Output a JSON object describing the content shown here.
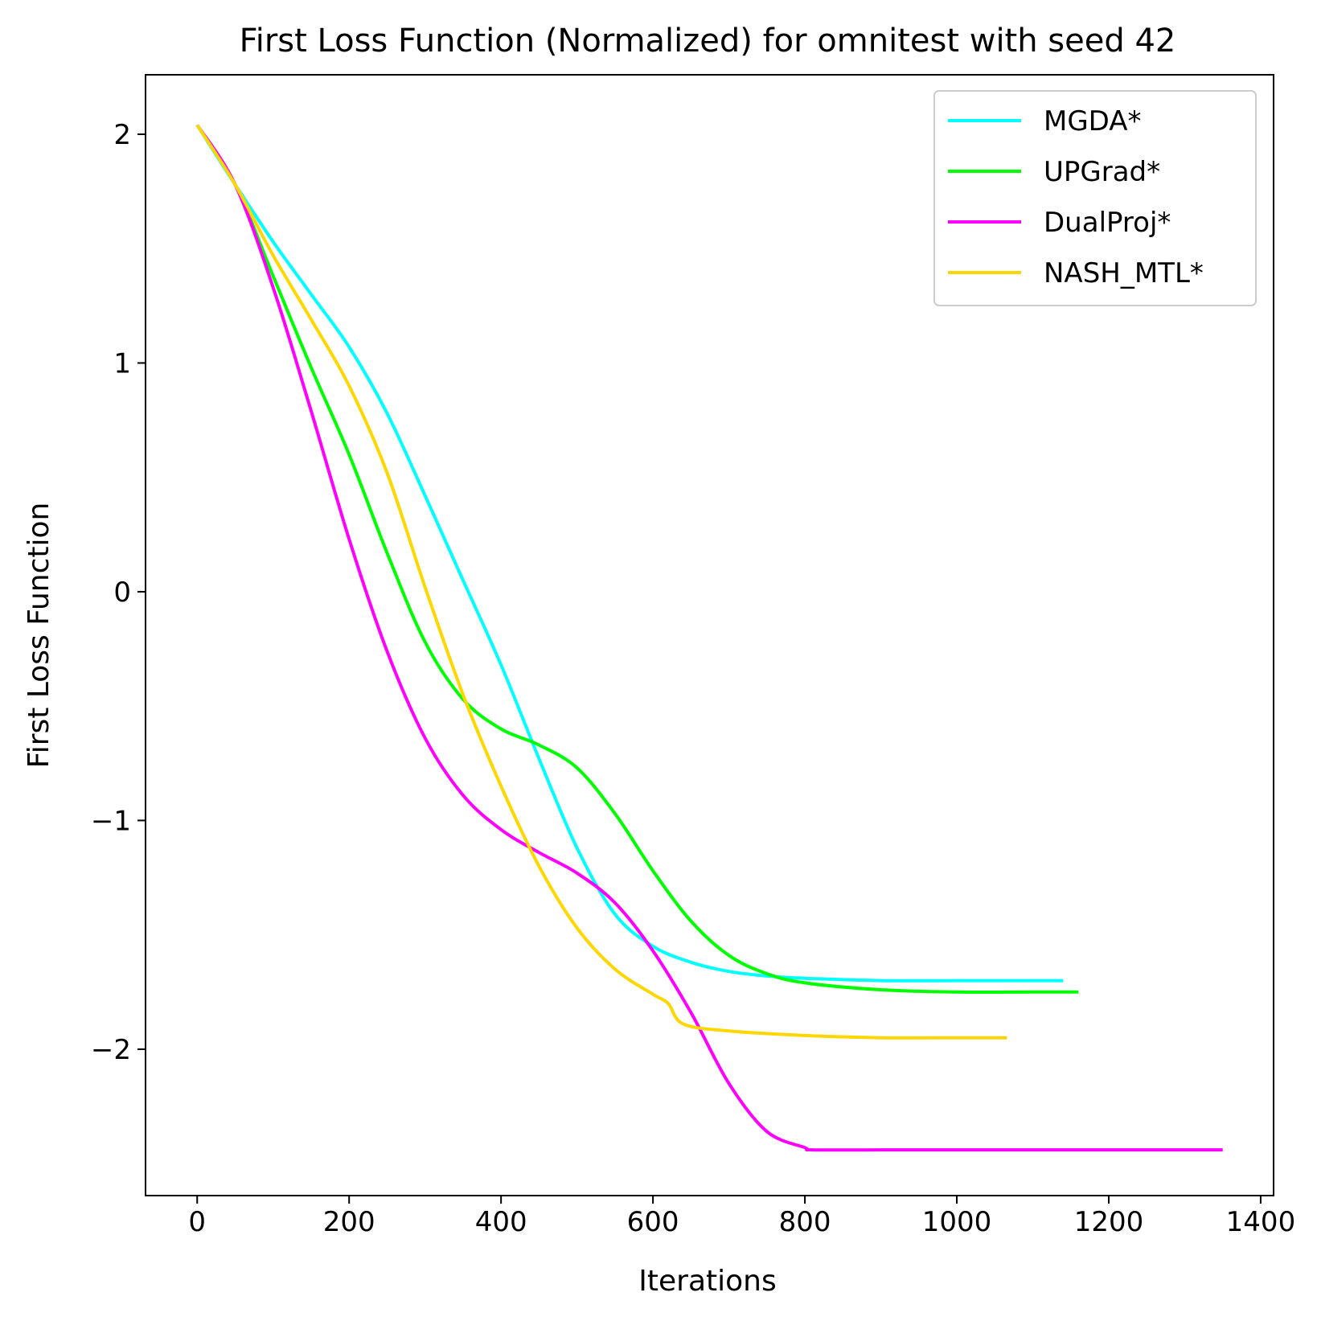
{
  "chart_data": {
    "type": "line",
    "title": "First Loss Function (Normalized) for omnitest with seed 42",
    "xlabel": "Iterations",
    "ylabel": "First Loss Function",
    "xlim": [
      -68,
      1417
    ],
    "ylim": [
      -2.64,
      2.26
    ],
    "xticks": [
      0,
      200,
      400,
      600,
      800,
      1000,
      1200,
      1400
    ],
    "xtick_labels": [
      "0",
      "200",
      "400",
      "600",
      "800",
      "1000",
      "1200",
      "1400"
    ],
    "yticks": [
      2,
      1,
      0,
      -1,
      -2
    ],
    "ytick_labels": [
      "2",
      "1",
      "0",
      "−1",
      "−2"
    ],
    "grid": false,
    "legend_position": "upper right",
    "series": [
      {
        "name": "MGDA*",
        "color": "#00ffff",
        "x": [
          0,
          50,
          100,
          150,
          200,
          250,
          300,
          350,
          400,
          450,
          500,
          550,
          600,
          650,
          700,
          750,
          800,
          900,
          1000,
          1100,
          1140
        ],
        "y": [
          2.04,
          1.78,
          1.53,
          1.3,
          1.07,
          0.78,
          0.42,
          0.05,
          -0.32,
          -0.73,
          -1.12,
          -1.41,
          -1.55,
          -1.62,
          -1.66,
          -1.68,
          -1.69,
          -1.7,
          -1.7,
          -1.7,
          -1.7
        ]
      },
      {
        "name": "UPGrad*",
        "color": "#00ff00",
        "x": [
          0,
          50,
          100,
          150,
          200,
          250,
          300,
          350,
          400,
          450,
          500,
          550,
          600,
          650,
          700,
          750,
          800,
          900,
          1000,
          1100,
          1160
        ],
        "y": [
          2.04,
          1.78,
          1.38,
          0.98,
          0.6,
          0.17,
          -0.22,
          -0.47,
          -0.6,
          -0.67,
          -0.77,
          -0.97,
          -1.22,
          -1.44,
          -1.59,
          -1.67,
          -1.71,
          -1.74,
          -1.75,
          -1.75,
          -1.75
        ]
      },
      {
        "name": "DualProj*",
        "color": "#ff00ff",
        "x": [
          0,
          50,
          100,
          150,
          200,
          250,
          300,
          350,
          400,
          450,
          500,
          550,
          600,
          650,
          700,
          750,
          800,
          810,
          900,
          1000,
          1100,
          1200,
          1300,
          1350
        ],
        "y": [
          2.04,
          1.78,
          1.33,
          0.79,
          0.23,
          -0.26,
          -0.64,
          -0.89,
          -1.04,
          -1.14,
          -1.23,
          -1.36,
          -1.57,
          -1.84,
          -2.15,
          -2.36,
          -2.43,
          -2.44,
          -2.44,
          -2.44,
          -2.44,
          -2.44,
          -2.44,
          -2.44
        ]
      },
      {
        "name": "NASH_MTL*",
        "color": "#ffd700",
        "x": [
          0,
          50,
          100,
          150,
          200,
          250,
          300,
          350,
          400,
          450,
          500,
          550,
          600,
          620,
          640,
          700,
          800,
          900,
          1000,
          1066
        ],
        "y": [
          2.04,
          1.78,
          1.47,
          1.19,
          0.9,
          0.52,
          0.02,
          -0.45,
          -0.85,
          -1.2,
          -1.47,
          -1.65,
          -1.76,
          -1.8,
          -1.89,
          -1.92,
          -1.94,
          -1.95,
          -1.95,
          -1.95
        ]
      }
    ]
  }
}
